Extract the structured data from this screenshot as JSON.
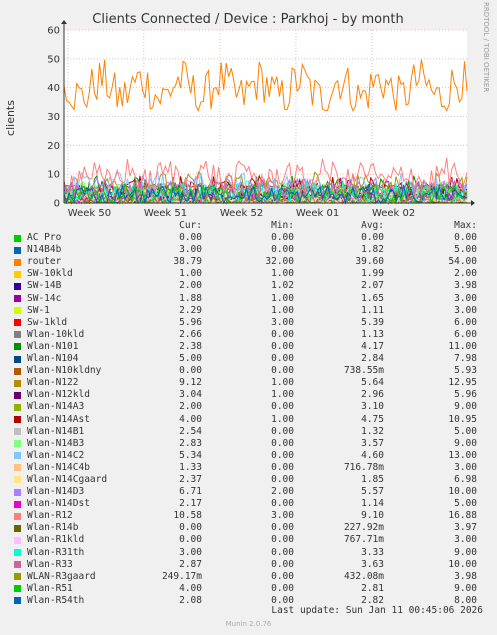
{
  "chart_data": {
    "type": "line",
    "title": "Clients Connected / Device : Parkhoj - by month",
    "ylabel": "clients",
    "side_label": "RRDTOOL / TOBI OETIKER",
    "ylim": [
      0,
      60
    ],
    "yticks": [
      0,
      10,
      20,
      30,
      40,
      50,
      60
    ],
    "grid": true,
    "xticks": [
      "Week 50",
      "Week 51",
      "Week 52",
      "Week 01",
      "Week 02"
    ],
    "columns": [
      "Cur:",
      "Min:",
      "Avg:",
      "Max:"
    ],
    "series": [
      {
        "name": "AC Pro",
        "color": "#00cc00",
        "cur": "0.00",
        "min": "0.00",
        "avg": "0.00",
        "max": "0.00"
      },
      {
        "name": "N14B4b",
        "color": "#0066b3",
        "cur": "3.00",
        "min": "0.00",
        "avg": "1.82",
        "max": "5.00"
      },
      {
        "name": "router",
        "color": "#ff8000",
        "cur": "38.79",
        "min": "32.00",
        "avg": "39.60",
        "max": "54.00"
      },
      {
        "name": "SW-10kld",
        "color": "#ffcc00",
        "cur": "1.00",
        "min": "1.00",
        "avg": "1.99",
        "max": "2.00"
      },
      {
        "name": "SW-14B",
        "color": "#330099",
        "cur": "2.00",
        "min": "1.02",
        "avg": "2.07",
        "max": "3.98"
      },
      {
        "name": "SW-14c",
        "color": "#990099",
        "cur": "1.88",
        "min": "1.00",
        "avg": "1.65",
        "max": "3.00"
      },
      {
        "name": "SW-1",
        "color": "#ccff00",
        "cur": "2.29",
        "min": "1.00",
        "avg": "1.11",
        "max": "3.00"
      },
      {
        "name": "Sw-1kld",
        "color": "#ff0000",
        "cur": "5.96",
        "min": "3.00",
        "avg": "5.39",
        "max": "6.00"
      },
      {
        "name": "Wlan-10kld",
        "color": "#808080",
        "cur": "2.66",
        "min": "0.00",
        "avg": "1.13",
        "max": "6.00"
      },
      {
        "name": "Wlan-N101",
        "color": "#008f00",
        "cur": "2.38",
        "min": "0.00",
        "avg": "4.17",
        "max": "11.00"
      },
      {
        "name": "Wlan-N104",
        "color": "#00487d",
        "cur": "5.00",
        "min": "0.00",
        "avg": "2.84",
        "max": "7.98"
      },
      {
        "name": "Wlan-N10kldny",
        "color": "#b35a00",
        "cur": "0.00",
        "min": "0.00",
        "avg": "738.55m",
        "max": "5.93"
      },
      {
        "name": "Wlan-N122",
        "color": "#b38f00",
        "cur": "9.12",
        "min": "1.00",
        "avg": "5.64",
        "max": "12.95"
      },
      {
        "name": "Wlan-N12kld",
        "color": "#6b006b",
        "cur": "3.04",
        "min": "1.00",
        "avg": "2.96",
        "max": "5.96"
      },
      {
        "name": "Wlan-N14A3",
        "color": "#8fb300",
        "cur": "2.00",
        "min": "0.00",
        "avg": "3.10",
        "max": "9.00"
      },
      {
        "name": "Wlan-N14Ast",
        "color": "#b30000",
        "cur": "4.00",
        "min": "1.00",
        "avg": "4.75",
        "max": "10.95"
      },
      {
        "name": "Wlan-N14B1",
        "color": "#bebebe",
        "cur": "2.54",
        "min": "0.00",
        "avg": "1.32",
        "max": "5.00"
      },
      {
        "name": "Wlan-N14B3",
        "color": "#80ff80",
        "cur": "2.83",
        "min": "0.00",
        "avg": "3.57",
        "max": "9.00"
      },
      {
        "name": "Wlan-N14C2",
        "color": "#80c9ff",
        "cur": "5.34",
        "min": "0.00",
        "avg": "4.60",
        "max": "13.00"
      },
      {
        "name": "Wlan-N14C4b",
        "color": "#ffc080",
        "cur": "1.33",
        "min": "0.00",
        "avg": "716.78m",
        "max": "3.00"
      },
      {
        "name": "Wlan-N14Cgaard",
        "color": "#ffe680",
        "cur": "2.37",
        "min": "0.00",
        "avg": "1.85",
        "max": "6.98"
      },
      {
        "name": "Wlan-N14D3",
        "color": "#aa80ff",
        "cur": "6.71",
        "min": "2.00",
        "avg": "5.57",
        "max": "10.00"
      },
      {
        "name": "Wlan-N14Dst",
        "color": "#ee00cc",
        "cur": "2.17",
        "min": "0.00",
        "avg": "1.14",
        "max": "5.00"
      },
      {
        "name": "Wlan-R12",
        "color": "#ff8080",
        "cur": "10.58",
        "min": "3.00",
        "avg": "9.10",
        "max": "16.88"
      },
      {
        "name": "Wlan-R14b",
        "color": "#666600",
        "cur": "0.00",
        "min": "0.00",
        "avg": "227.92m",
        "max": "3.97"
      },
      {
        "name": "Wlan-R1kld",
        "color": "#ffbfff",
        "cur": "0.00",
        "min": "0.00",
        "avg": "767.71m",
        "max": "3.00"
      },
      {
        "name": "Wlan-R31th",
        "color": "#00ffcc",
        "cur": "3.00",
        "min": "0.00",
        "avg": "3.33",
        "max": "9.00"
      },
      {
        "name": "Wlan-R33",
        "color": "#cc6699",
        "cur": "2.87",
        "min": "0.00",
        "avg": "3.63",
        "max": "10.00"
      },
      {
        "name": "WLAN-R3gaard",
        "color": "#999900",
        "cur": "249.17m",
        "min": "0.00",
        "avg": "432.08m",
        "max": "3.98"
      },
      {
        "name": "Wlan-R51",
        "color": "#00cc00",
        "cur": "4.00",
        "min": "0.00",
        "avg": "2.81",
        "max": "9.00"
      },
      {
        "name": "Wlan-R54th",
        "color": "#0066b3",
        "cur": "2.08",
        "min": "0.00",
        "avg": "2.82",
        "max": "8.00"
      }
    ]
  },
  "footer": {
    "last_update": "Last update: Sun Jan 11 00:45:06 2026",
    "version": "Munin 2.0.76"
  }
}
